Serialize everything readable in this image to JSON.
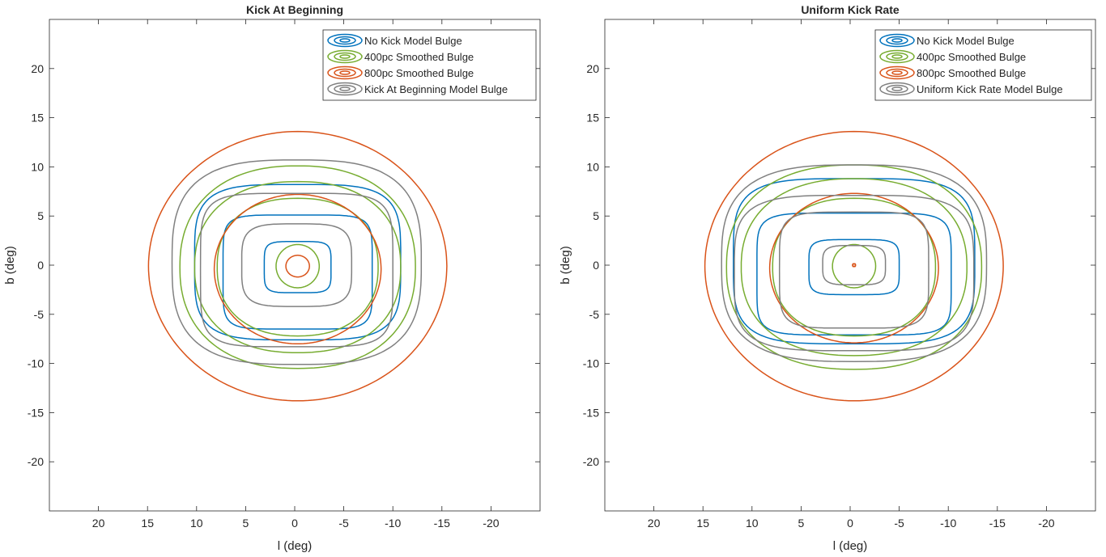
{
  "chart_data": [
    {
      "type": "contour",
      "title": "Kick At Beginning",
      "xlabel": "l (deg)",
      "ylabel": "b (deg)",
      "xlim": [
        25,
        -25
      ],
      "ylim": [
        -25,
        25
      ],
      "x_reversed": true,
      "xticks": [
        20,
        15,
        10,
        5,
        0,
        -5,
        -10,
        -15,
        -20
      ],
      "yticks": [
        20,
        15,
        10,
        5,
        0,
        -5,
        -10,
        -15,
        -20
      ],
      "legend_position": "top-right",
      "legend": [
        "No Kick Model Bulge",
        "400pc Smoothed Bulge",
        "800pc Smoothed Bulge",
        "Kick At Beginning Model Bulge"
      ],
      "series": [
        {
          "name": "No Kick Model Bulge",
          "color": "#0072BD",
          "levels": [
            {
              "cx": -0.3,
              "cy": -0.2,
              "a": 3.4,
              "b": 2.6,
              "p": 5
            },
            {
              "cx": -0.3,
              "cy": -0.7,
              "a": 7.6,
              "b": 5.8,
              "p": 6
            },
            {
              "cx": -0.3,
              "cy": 0.3,
              "a": 10.5,
              "b": 7.9,
              "p": 4
            }
          ]
        },
        {
          "name": "400pc Smoothed Bulge",
          "color": "#77AC30",
          "levels": [
            {
              "cx": -0.3,
              "cy": -0.1,
              "a": 2.2,
              "b": 2.2,
              "p": 2
            },
            {
              "cx": -0.3,
              "cy": -0.2,
              "a": 8.2,
              "b": 7.0,
              "p": 2.3
            },
            {
              "cx": -0.3,
              "cy": -0.2,
              "a": 10.5,
              "b": 8.7,
              "p": 2.3
            },
            {
              "cx": -0.3,
              "cy": -0.2,
              "a": 12.0,
              "b": 10.3,
              "p": 2.3
            }
          ]
        },
        {
          "name": "800pc Smoothed Bulge",
          "color": "#D95319",
          "levels": [
            {
              "cx": -0.3,
              "cy": -0.1,
              "a": 1.2,
              "b": 1.1,
              "p": 2
            },
            {
              "cx": -0.3,
              "cy": -0.4,
              "a": 8.5,
              "b": 7.6,
              "p": 2
            },
            {
              "cx": -0.3,
              "cy": -0.1,
              "a": 15.2,
              "b": 13.7,
              "p": 2
            }
          ]
        },
        {
          "name": "Kick At Beginning Model Bulge",
          "color": "#808080",
          "levels": [
            {
              "cx": -0.2,
              "cy": 0,
              "a": 5.6,
              "b": 4.2,
              "p": 4
            },
            {
              "cx": -0.2,
              "cy": -0.5,
              "a": 9.8,
              "b": 7.8,
              "p": 5
            },
            {
              "cx": -0.2,
              "cy": 0.3,
              "a": 12.7,
              "b": 10.4,
              "p": 3
            }
          ]
        }
      ]
    },
    {
      "type": "contour",
      "title": "Uniform Kick Rate",
      "xlabel": "l (deg)",
      "ylabel": "b (deg)",
      "xlim": [
        25,
        -25
      ],
      "ylim": [
        -25,
        25
      ],
      "x_reversed": true,
      "xticks": [
        20,
        15,
        10,
        5,
        0,
        -5,
        -10,
        -15,
        -20
      ],
      "yticks": [
        20,
        15,
        10,
        5,
        0,
        -5,
        -10,
        -15,
        -20
      ],
      "legend_position": "top-right",
      "legend": [
        "No Kick Model Bulge",
        "400pc Smoothed Bulge",
        "800pc Smoothed Bulge",
        "Uniform Kick Rate Model Bulge"
      ],
      "series": [
        {
          "name": "No Kick Model Bulge",
          "color": "#0072BD",
          "levels": [
            {
              "cx": -0.4,
              "cy": -0.2,
              "a": 4.6,
              "b": 2.8,
              "p": 5
            },
            {
              "cx": -0.4,
              "cy": -0.9,
              "a": 9.9,
              "b": 6.2,
              "p": 6
            },
            {
              "cx": -0.4,
              "cy": 0.4,
              "a": 12.3,
              "b": 8.4,
              "p": 4
            }
          ]
        },
        {
          "name": "400pc Smoothed Bulge",
          "color": "#77AC30",
          "levels": [
            {
              "cx": -0.4,
              "cy": -0.1,
              "a": 2.2,
              "b": 2.2,
              "p": 2
            },
            {
              "cx": -0.4,
              "cy": -0.2,
              "a": 8.3,
              "b": 7.0,
              "p": 2.3
            },
            {
              "cx": -0.4,
              "cy": -0.2,
              "a": 11.5,
              "b": 9.0,
              "p": 2.3
            },
            {
              "cx": -0.4,
              "cy": -0.2,
              "a": 13.0,
              "b": 10.4,
              "p": 2.3
            }
          ]
        },
        {
          "name": "800pc Smoothed Bulge",
          "color": "#D95319",
          "levels": [
            {
              "cx": -0.4,
              "cy": 0,
              "a": 0.15,
              "b": 0.15,
              "p": 2
            },
            {
              "cx": -0.4,
              "cy": -0.3,
              "a": 8.6,
              "b": 7.6,
              "p": 2
            },
            {
              "cx": -0.4,
              "cy": -0.1,
              "a": 15.2,
              "b": 13.7,
              "p": 2
            }
          ]
        },
        {
          "name": "Uniform Kick Rate Model Bulge",
          "color": "#808080",
          "levels": [
            {
              "cx": -0.4,
              "cy": 0,
              "a": 3.2,
              "b": 2.0,
              "p": 4
            },
            {
              "cx": -0.4,
              "cy": -0.5,
              "a": 7.6,
              "b": 5.9,
              "p": 5
            },
            {
              "cx": -0.4,
              "cy": -0.8,
              "a": 12.2,
              "b": 7.9,
              "p": 4
            },
            {
              "cx": -0.4,
              "cy": 0.2,
              "a": 13.5,
              "b": 10.0,
              "p": 3
            }
          ]
        }
      ]
    }
  ]
}
